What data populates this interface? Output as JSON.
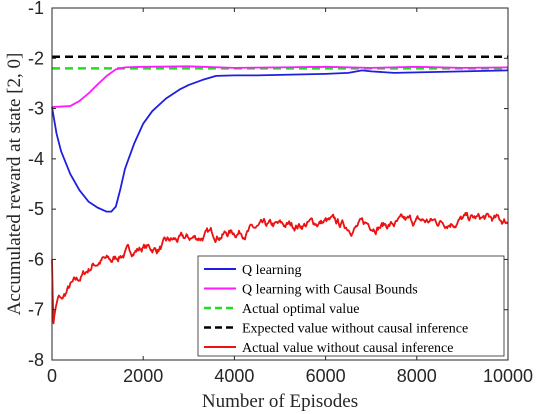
{
  "chart_data": {
    "type": "line",
    "xlabel": "Number of Episodes",
    "ylabel": "Accumulated reward at state [2, 0]",
    "xlim": [
      0,
      10000
    ],
    "ylim": [
      -8,
      -1
    ],
    "x_ticks": [
      0,
      2000,
      4000,
      6000,
      8000,
      10000
    ],
    "y_ticks": [
      -1,
      -2,
      -3,
      -4,
      -5,
      -6,
      -7,
      -8
    ],
    "grid": false,
    "legend_position": "bottom-right",
    "series": [
      {
        "name": "Q learning",
        "color": "#1f1fe0",
        "style": "solid",
        "x": [
          0,
          100,
          200,
          400,
          600,
          800,
          1000,
          1200,
          1300,
          1400,
          1500,
          1600,
          1800,
          2000,
          2200,
          2500,
          2800,
          3000,
          3300,
          3600,
          4000,
          4500,
          5000,
          5500,
          6000,
          6500,
          6800,
          7000,
          7500,
          8000,
          8500,
          9000,
          9500,
          10000
        ],
        "y": [
          -2.97,
          -3.5,
          -3.85,
          -4.3,
          -4.62,
          -4.85,
          -4.97,
          -5.05,
          -5.05,
          -4.95,
          -4.6,
          -4.2,
          -3.7,
          -3.3,
          -3.05,
          -2.8,
          -2.62,
          -2.53,
          -2.43,
          -2.35,
          -2.34,
          -2.34,
          -2.33,
          -2.32,
          -2.31,
          -2.29,
          -2.24,
          -2.26,
          -2.29,
          -2.28,
          -2.27,
          -2.26,
          -2.25,
          -2.24
        ]
      },
      {
        "name": "Q learning with Causal Bounds",
        "color": "#ff1aff",
        "style": "solid",
        "x": [
          0,
          200,
          400,
          600,
          800,
          1000,
          1200,
          1400,
          1600,
          2000,
          3000,
          4000,
          5000,
          6000,
          7000,
          8000,
          9000,
          10000
        ],
        "y": [
          -2.97,
          -2.96,
          -2.95,
          -2.85,
          -2.7,
          -2.52,
          -2.35,
          -2.22,
          -2.18,
          -2.17,
          -2.16,
          -2.19,
          -2.18,
          -2.17,
          -2.19,
          -2.17,
          -2.19,
          -2.18
        ]
      },
      {
        "name": "Actual optimal value",
        "color": "#22dd22",
        "style": "dashed",
        "x": [
          0,
          10000
        ],
        "y": [
          -2.2,
          -2.2
        ]
      },
      {
        "name": "Expected value without causal inference",
        "color": "#000000",
        "style": "dashed",
        "x": [
          0,
          10000
        ],
        "y": [
          -1.97,
          -1.97
        ]
      },
      {
        "name": "Actual value without causal inference",
        "color": "#ee1111",
        "style": "solid",
        "noise": true,
        "x": [
          0,
          30,
          60,
          100,
          150,
          200,
          300,
          400,
          500,
          700,
          900,
          1100,
          1300,
          1500,
          1700,
          2000,
          2300,
          2600,
          3000,
          3500,
          4000,
          4500,
          5000,
          5500,
          6000,
          6500,
          7000,
          7500,
          8000,
          8500,
          9000,
          9500,
          10000
        ],
        "y": [
          -6.0,
          -7.3,
          -7.05,
          -6.85,
          -6.75,
          -6.85,
          -6.7,
          -6.55,
          -6.5,
          -6.3,
          -6.1,
          -6.0,
          -6.05,
          -5.9,
          -5.85,
          -5.75,
          -5.8,
          -5.65,
          -5.6,
          -5.5,
          -5.45,
          -5.4,
          -5.35,
          -5.3,
          -5.25,
          -5.35,
          -5.3,
          -5.3,
          -5.25,
          -5.25,
          -5.2,
          -5.2,
          -5.25
        ]
      }
    ]
  }
}
